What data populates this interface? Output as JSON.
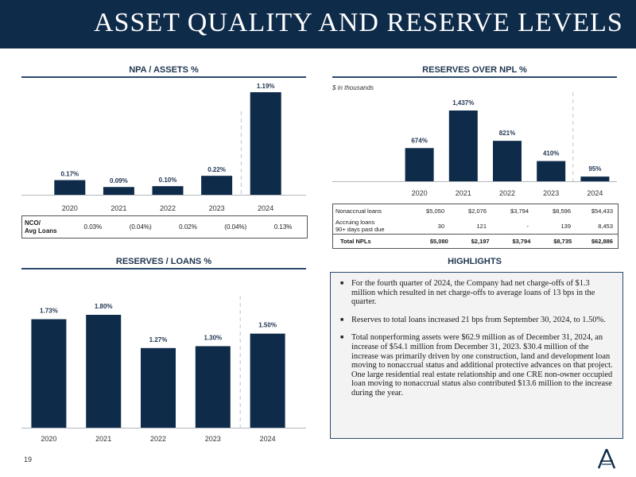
{
  "header": {
    "title": "ASSET QUALITY AND RESERVE LEVELS"
  },
  "npa": {
    "title": "NPA / ASSETS %",
    "chart_data": {
      "type": "bar",
      "categories": [
        "2020",
        "2021",
        "2022",
        "2023",
        "2024"
      ],
      "values": [
        0.17,
        0.09,
        0.1,
        0.22,
        1.19
      ],
      "labels": [
        "0.17%",
        "0.09%",
        "0.10%",
        "0.22%",
        "1.19%"
      ],
      "title": "NPA / ASSETS %",
      "ylim": [
        0,
        1.19
      ]
    },
    "nco": {
      "label": "NCO/\nAvg Loans",
      "values": [
        "0.03%",
        "(0.04%)",
        "0.02%",
        "(0.04%)",
        "0.13%"
      ]
    }
  },
  "reserves_npl": {
    "title": "RESERVES OVER NPL %",
    "note": "$ in thousands",
    "chart_data": {
      "type": "bar",
      "categories": [
        "2020",
        "2021",
        "2022",
        "2023",
        "2024"
      ],
      "values": [
        674,
        1437,
        821,
        410,
        95
      ],
      "labels": [
        "674%",
        "1,437%",
        "821%",
        "410%",
        "95%"
      ],
      "title": "RESERVES OVER NPL %",
      "ylim": [
        0,
        1437
      ]
    },
    "table": {
      "rows": [
        {
          "label": "Nonaccrual loans",
          "values": [
            "$5,050",
            "$2,076",
            "$3,794",
            "$8,596",
            "$54,433"
          ]
        },
        {
          "label": "Accruing loans\n90+ days past due",
          "values": [
            "30",
            "121",
            "-",
            "139",
            "8,453"
          ]
        },
        {
          "label": "Total NPLs",
          "values": [
            "$5,080",
            "$2,197",
            "$3,794",
            "$8,735",
            "$62,886"
          ]
        }
      ]
    }
  },
  "reserves_loans": {
    "title": "RESERVES / LOANS %",
    "chart_data": {
      "type": "bar",
      "categories": [
        "2020",
        "2021",
        "2022",
        "2023",
        "2024"
      ],
      "values": [
        1.73,
        1.8,
        1.27,
        1.3,
        1.5
      ],
      "labels": [
        "1.73%",
        "1.80%",
        "1.27%",
        "1.30%",
        "1.50%"
      ],
      "title": "RESERVES / LOANS %",
      "ylim": [
        0,
        1.8
      ]
    }
  },
  "highlights": {
    "title": "HIGHLIGHTS",
    "items": [
      "For the fourth quarter of 2024, the Company had net charge-offs of $1.3 million which resulted in net charge-offs to average loans of 13 bps in the quarter.",
      "Reserves to total loans increased 21 bps from September 30, 2024, to 1.50%.",
      "Total nonperforming assets were $62.9 million as of December 31, 2024, an increase of $54.1 million from December 31, 2023. $30.4 million of the increase was primarily driven by one construction, land and development loan moving to nonaccrual status and additional protective advances on that project. One large residential real estate relationship and one CRE non-owner occupied loan moving to nonaccrual status also contributed $13.6 million to the increase during the year."
    ]
  },
  "footer": {
    "page_number": "19"
  },
  "colors": {
    "navy": "#0e2b4a",
    "bar": "#0e2b4a",
    "panel": "#f3f3f3"
  }
}
